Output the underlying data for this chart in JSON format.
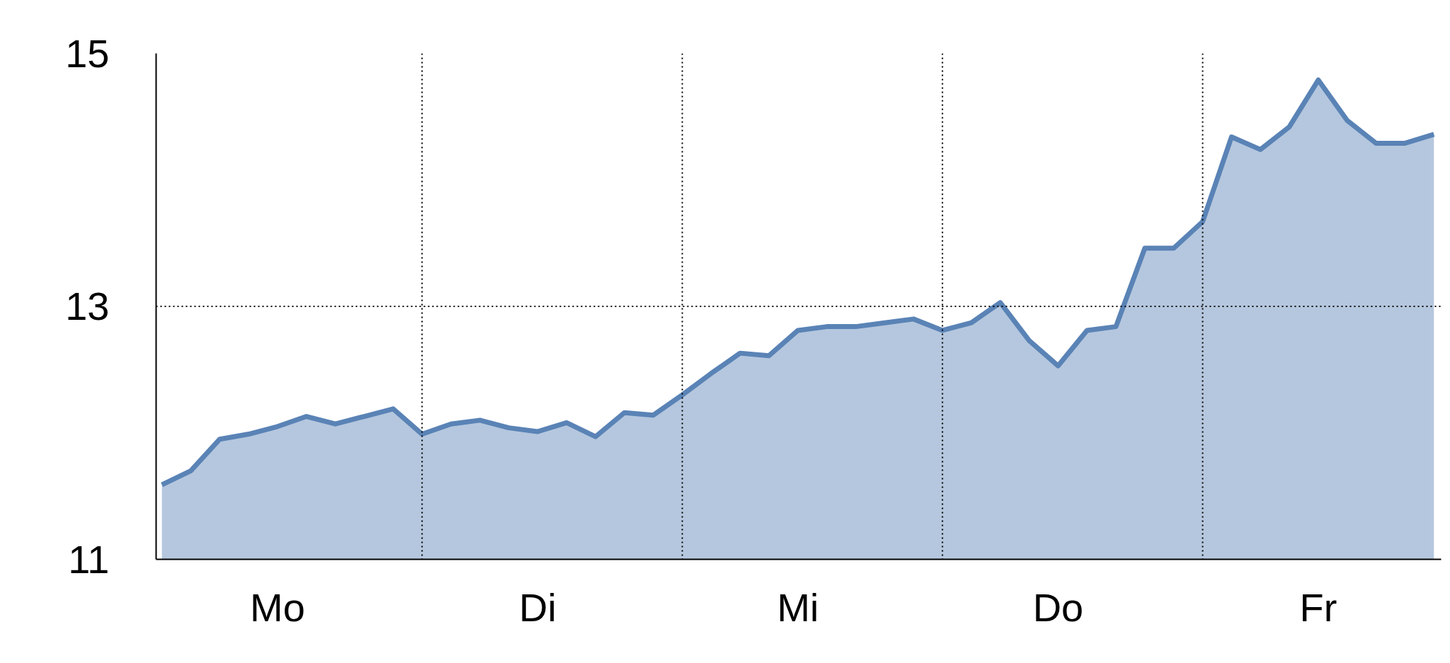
{
  "chart_data": {
    "type": "area",
    "color": "#5a83b6",
    "categories": [
      null,
      null,
      null,
      null,
      "Mo",
      null,
      null,
      null,
      null,
      null,
      null,
      null,
      null,
      "Di",
      null,
      null,
      null,
      null,
      null,
      null,
      null,
      null,
      "Mi",
      null,
      null,
      null,
      null,
      null,
      null,
      null,
      null,
      "Do",
      null,
      null,
      null,
      null,
      null,
      null,
      null,
      null,
      "Fr",
      null,
      null,
      null,
      null
    ],
    "values": [
      11.59,
      11.7,
      11.95,
      11.99,
      12.05,
      12.13,
      12.07,
      12.13,
      12.19,
      11.99,
      12.07,
      12.1,
      12.04,
      12.01,
      12.08,
      11.97,
      12.16,
      12.14,
      12.3,
      12.47,
      12.63,
      12.61,
      12.81,
      12.84,
      12.84,
      12.87,
      12.9,
      12.81,
      12.87,
      13.03,
      12.73,
      12.53,
      12.81,
      12.84,
      13.46,
      13.46,
      13.67,
      14.34,
      14.24,
      14.42,
      14.79,
      14.47,
      14.29,
      14.29,
      14.36
    ],
    "grid": "x",
    "ylim": [
      11,
      15
    ],
    "yticks": [
      11,
      13,
      15
    ],
    "ref_lines": [
      {
        "axis": "y",
        "value": 13,
        "line_style": "dotted"
      }
    ]
  }
}
